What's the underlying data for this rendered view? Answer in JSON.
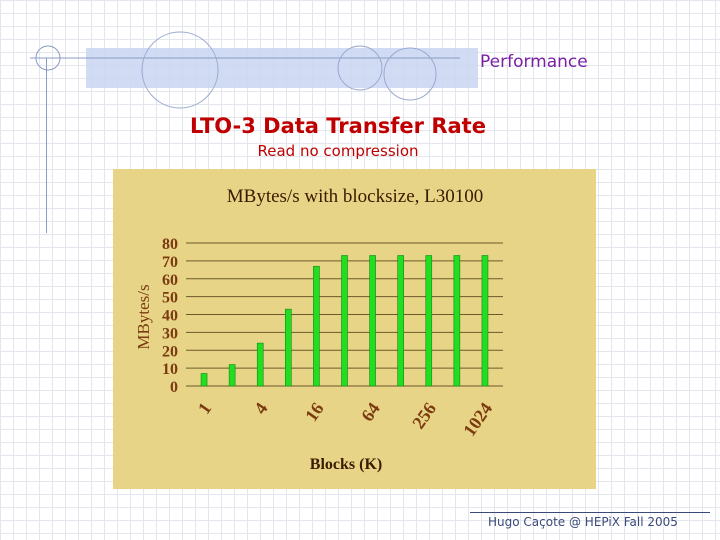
{
  "slide": {
    "section_label": "Performance",
    "title": "LTO-3 Data Transfer Rate",
    "subtitle": "Read no compression",
    "footer": "Hugo Caçote @ HEPiX Fall 2005"
  },
  "colors": {
    "chart_background": "#e8d486",
    "bar": "#22dd22",
    "axis_text": "#7a3b10",
    "title_red": "#c00000",
    "section_purple": "#7a1fa6"
  },
  "chart_data": {
    "type": "bar",
    "title": "MBytes/s with blocksize, L30100",
    "xlabel": "Blocks (K)",
    "ylabel": "MBytes/s",
    "categories": [
      "1",
      "2",
      "4",
      "8",
      "16",
      "32",
      "64",
      "128",
      "256",
      "512",
      "1024"
    ],
    "x_tick_labels": [
      "1",
      "4",
      "16",
      "64",
      "256",
      "1024"
    ],
    "values": [
      7,
      12,
      24,
      43,
      67,
      73,
      73,
      73,
      73,
      73,
      73
    ],
    "y_ticks": [
      "0",
      "10",
      "20",
      "30",
      "40",
      "50",
      "60",
      "70",
      "80"
    ],
    "ylim": [
      0,
      80
    ],
    "grid": true,
    "legend": "none"
  }
}
